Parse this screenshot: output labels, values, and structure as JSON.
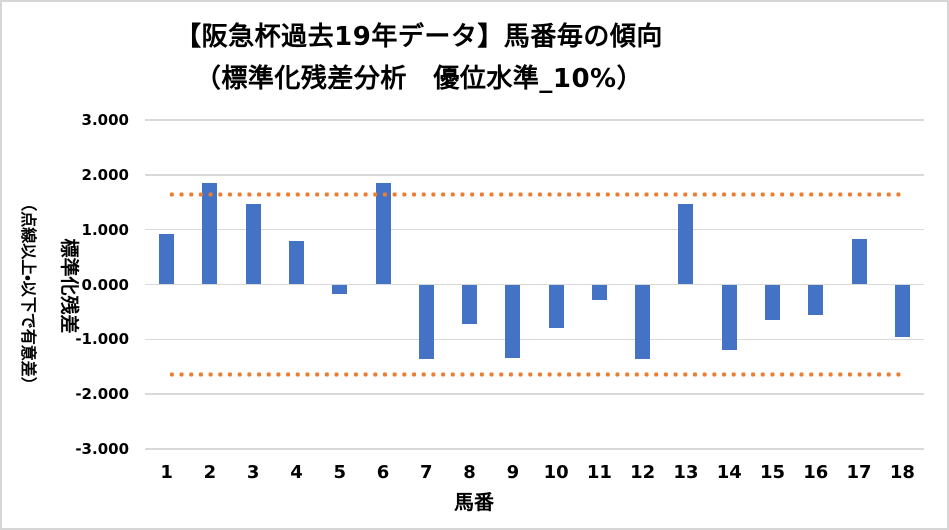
{
  "page": {
    "background": "#ffffff",
    "frame_border_color": "#D6D6D6"
  },
  "chart_data": {
    "type": "bar",
    "title": "【阪急杯過去19年データ】馬番毎の傾向",
    "subtitle": "（標準化残差分析　優位水準_10%）",
    "xlabel": "馬番",
    "ylabel": "標準化残差",
    "ylabel_note": "（点線以上・以下で有意差）",
    "categories": [
      "1",
      "2",
      "3",
      "4",
      "5",
      "6",
      "7",
      "8",
      "9",
      "10",
      "11",
      "12",
      "13",
      "14",
      "15",
      "16",
      "17",
      "18"
    ],
    "values": [
      0.92,
      1.86,
      1.47,
      0.79,
      -0.18,
      1.86,
      -1.36,
      -0.72,
      -1.34,
      -0.79,
      -0.28,
      -1.35,
      1.46,
      -1.19,
      -0.65,
      -0.55,
      0.83,
      -0.95
    ],
    "ylim": [
      -3,
      3
    ],
    "ytick_labels": [
      "3.000",
      "2.000",
      "1.000",
      "0.000",
      "-1.000",
      "-2.000",
      "-3.000"
    ],
    "significance_level": 1.645,
    "grid": true,
    "legend": "none",
    "bar_color": "#4472C4",
    "significance_line_color": "#ED7D31",
    "gridline_color": "#D9D9D9",
    "text_color": "#000000"
  }
}
